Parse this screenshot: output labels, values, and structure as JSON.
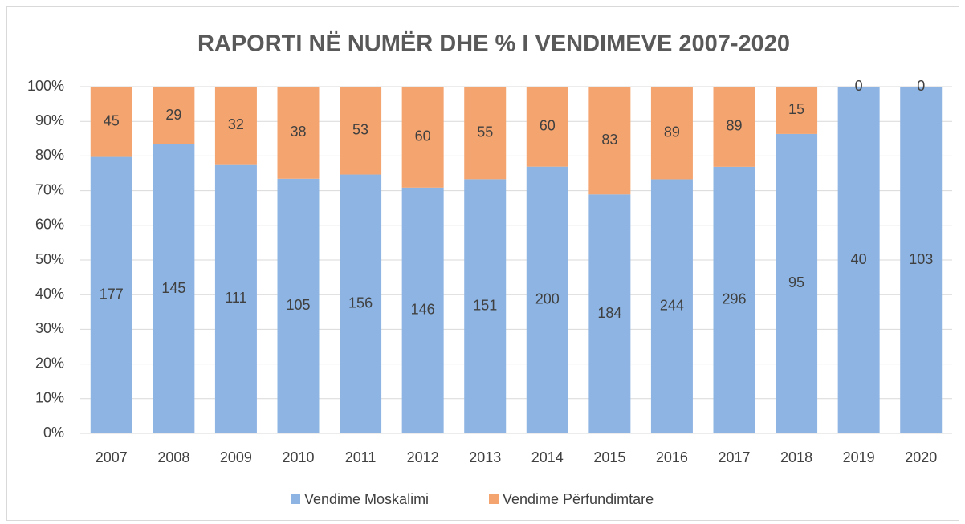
{
  "chart_data": {
    "type": "bar",
    "stacking": "percent",
    "title": "RAPORTI NË NUMËR DHE % I VENDIMEVE 2007-2020",
    "categories": [
      "2007",
      "2008",
      "2009",
      "2010",
      "2011",
      "2012",
      "2013",
      "2014",
      "2015",
      "2016",
      "2017",
      "2018",
      "2019",
      "2020"
    ],
    "series": [
      {
        "name": "Vendime Moskalimi",
        "color": "#8db4e2",
        "values": [
          177,
          145,
          111,
          105,
          156,
          146,
          151,
          200,
          184,
          244,
          296,
          95,
          40,
          103
        ]
      },
      {
        "name": "Vendime Përfundimtare",
        "color": "#f4a46f",
        "values": [
          45,
          29,
          32,
          38,
          53,
          60,
          55,
          60,
          83,
          89,
          89,
          15,
          0,
          0
        ]
      }
    ],
    "ylim": [
      0,
      100
    ],
    "yticks": [
      {
        "value": 0,
        "label": "0%"
      },
      {
        "value": 10,
        "label": "10%"
      },
      {
        "value": 20,
        "label": "20%"
      },
      {
        "value": 30,
        "label": "30%"
      },
      {
        "value": 40,
        "label": "40%"
      },
      {
        "value": 50,
        "label": "50%"
      },
      {
        "value": 60,
        "label": "60%"
      },
      {
        "value": 70,
        "label": "70%"
      },
      {
        "value": 80,
        "label": "80%"
      },
      {
        "value": 90,
        "label": "90%"
      },
      {
        "value": 100,
        "label": "100%"
      }
    ],
    "grid": true,
    "legend": "bottom"
  }
}
